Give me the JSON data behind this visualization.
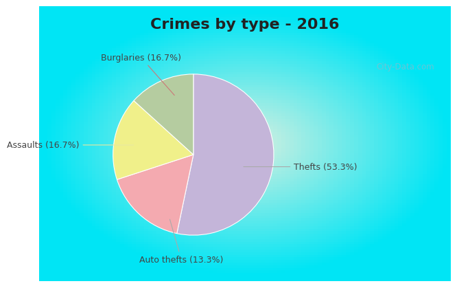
{
  "title": "Crimes by type - 2016",
  "slices": [
    {
      "label": "Thefts (53.3%)",
      "value": 53.3,
      "color": "#c4b5d9"
    },
    {
      "label": "Burglaries (16.7%)",
      "value": 16.7,
      "color": "#f4aab0"
    },
    {
      "label": "Assaults (16.7%)",
      "value": 16.7,
      "color": "#f0f08a"
    },
    {
      "label": "Auto thefts (13.3%)",
      "value": 13.3,
      "color": "#b5cca0"
    }
  ],
  "bg_cyan": "#00e5f5",
  "bg_center": "#d8f0e0",
  "title_fontsize": 16,
  "label_fontsize": 9,
  "watermark": "City-Data.com",
  "label_color": "#444444",
  "arrow_color_burglaries": "#cc7777",
  "arrow_color_other": "#aaaaaa"
}
